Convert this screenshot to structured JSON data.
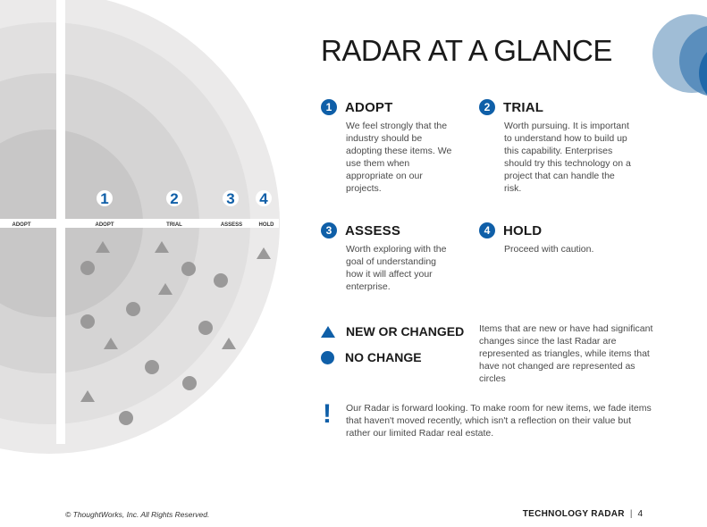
{
  "title": "RADAR AT A GLANCE",
  "radar": {
    "axis_labels": [
      "ADOPT",
      "ADOPT",
      "TRIAL",
      "ASSESS",
      "HOLD"
    ],
    "ring_numbers": [
      "1",
      "2",
      "3",
      "4"
    ]
  },
  "rings": [
    {
      "number": "1",
      "name": "ADOPT",
      "description": "We feel strongly that the industry should be adopting these items. We use them when appropriate on our projects."
    },
    {
      "number": "2",
      "name": "TRIAL",
      "description": "Worth pursuing. It is important to understand how to build up this capability. Enterprises should try this technology on a project that can handle the risk."
    },
    {
      "number": "3",
      "name": "ASSESS",
      "description": "Worth exploring with the goal of understanding how it will affect your enterprise."
    },
    {
      "number": "4",
      "name": "HOLD",
      "description": "Proceed with caution."
    }
  ],
  "legend": {
    "new_label": "NEW OR CHANGED",
    "no_change_label": "NO CHANGE",
    "explanation": "Items that are new or have had significant changes since the last Radar are represented as triangles, while items that have not changed are represented as circles"
  },
  "note": "Our Radar is forward looking. To make room for new items, we fade items that haven't moved recently, which isn't a reflection on their value but rather our limited Radar real estate.",
  "footer": {
    "copyright": "© ThoughtWorks, Inc. All Rights Reserved.",
    "brand": "TECHNOLOGY RADAR",
    "separator": "|",
    "page": "4"
  },
  "colors": {
    "accent": "#0f5fa8",
    "ring_inner": "#c8c7c7",
    "ring_2": "#d5d4d4",
    "ring_3": "#e1e0e0",
    "ring_outer": "#ebeaea",
    "blip": "#9a9999"
  }
}
